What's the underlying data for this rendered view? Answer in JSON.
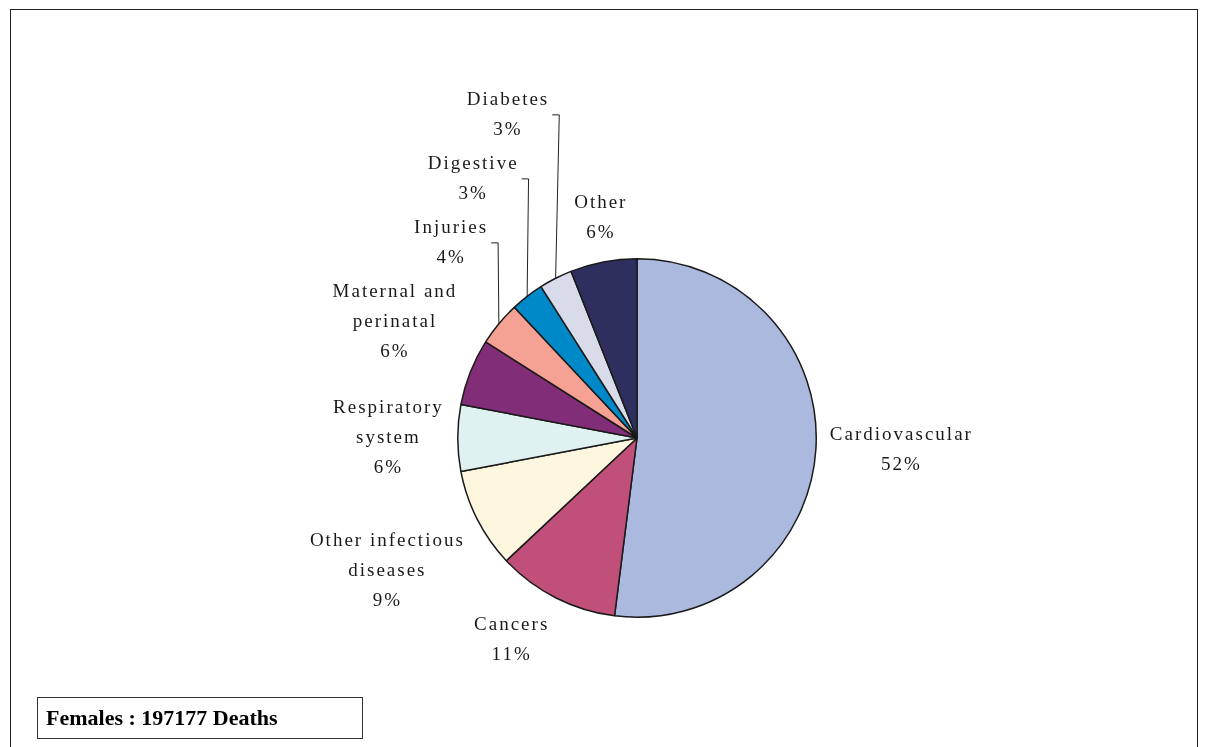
{
  "chart_data": {
    "type": "pie",
    "title": "Females : 197177 Deaths",
    "categories": [
      "Cardiovascular",
      "Cancers",
      "Other infectious diseases",
      "Respiratory system",
      "Maternal and perinatal",
      "Injuries",
      "Digestive",
      "Diabetes",
      "Other"
    ],
    "values": [
      52,
      11,
      9,
      6,
      6,
      4,
      3,
      3,
      6
    ],
    "value_labels": [
      "52%",
      "11%",
      "9%",
      "6%",
      "6%",
      "4%",
      "3%",
      "3%",
      "6%"
    ],
    "colors": [
      "#abb9df",
      "#c0507a",
      "#fcf6df",
      "#e0f1f1",
      "#822d78",
      "#f5a193",
      "#0089c8",
      "#d8dbea",
      "#2e2f5f"
    ]
  }
}
